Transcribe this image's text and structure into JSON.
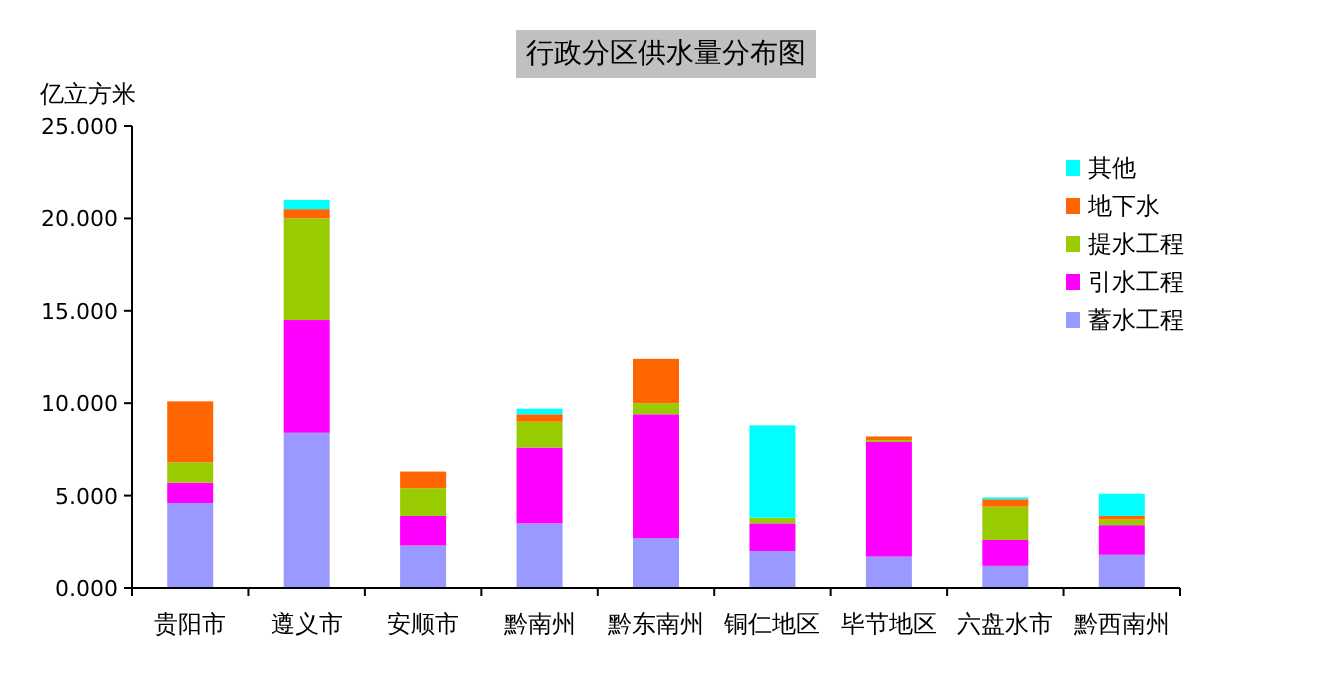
{
  "chart_data": {
    "type": "bar",
    "stacked": true,
    "title": "行政分区供水量分布图",
    "ylabel": "亿立方米",
    "categories": [
      "贵阳市",
      "遵义市",
      "安顺市",
      "黔南州",
      "黔东南州",
      "铜仁地区",
      "毕节地区",
      "六盘水市",
      "黔西南州"
    ],
    "series": [
      {
        "name": "蓄水工程",
        "color": "#9999ff",
        "values": [
          4.6,
          8.4,
          2.3,
          3.5,
          2.7,
          2,
          1.7,
          1.2,
          1.8
        ]
      },
      {
        "name": "引水工程",
        "color": "#ff00ff",
        "values": [
          1.1,
          6.1,
          1.6,
          4.1,
          6.7,
          1.5,
          6.2,
          1.4,
          1.6
        ]
      },
      {
        "name": "提水工程",
        "color": "#99cc00",
        "values": [
          1.1,
          5.5,
          1.5,
          1.4,
          0.6,
          0.3,
          0.1,
          1.8,
          0.3
        ]
      },
      {
        "name": "地下水",
        "color": "#ff6600",
        "values": [
          3.3,
          0.5,
          0.9,
          0.4,
          2.4,
          0,
          0.2,
          0.4,
          0.2
        ]
      },
      {
        "name": "其他",
        "color": "#00ffff",
        "values": [
          0,
          0.5,
          0,
          0.3,
          0,
          5,
          0,
          0.1,
          1.2
        ]
      }
    ],
    "ylim": [
      0,
      25
    ],
    "yticks": [
      {
        "value": 0,
        "label": "0.000"
      },
      {
        "value": 5,
        "label": "5.000"
      },
      {
        "value": 10,
        "label": "10.000"
      },
      {
        "value": 15,
        "label": "15.000"
      },
      {
        "value": 20,
        "label": "20.000"
      },
      {
        "value": 25,
        "label": "25.000"
      }
    ],
    "legend": "top right",
    "grid": false
  }
}
